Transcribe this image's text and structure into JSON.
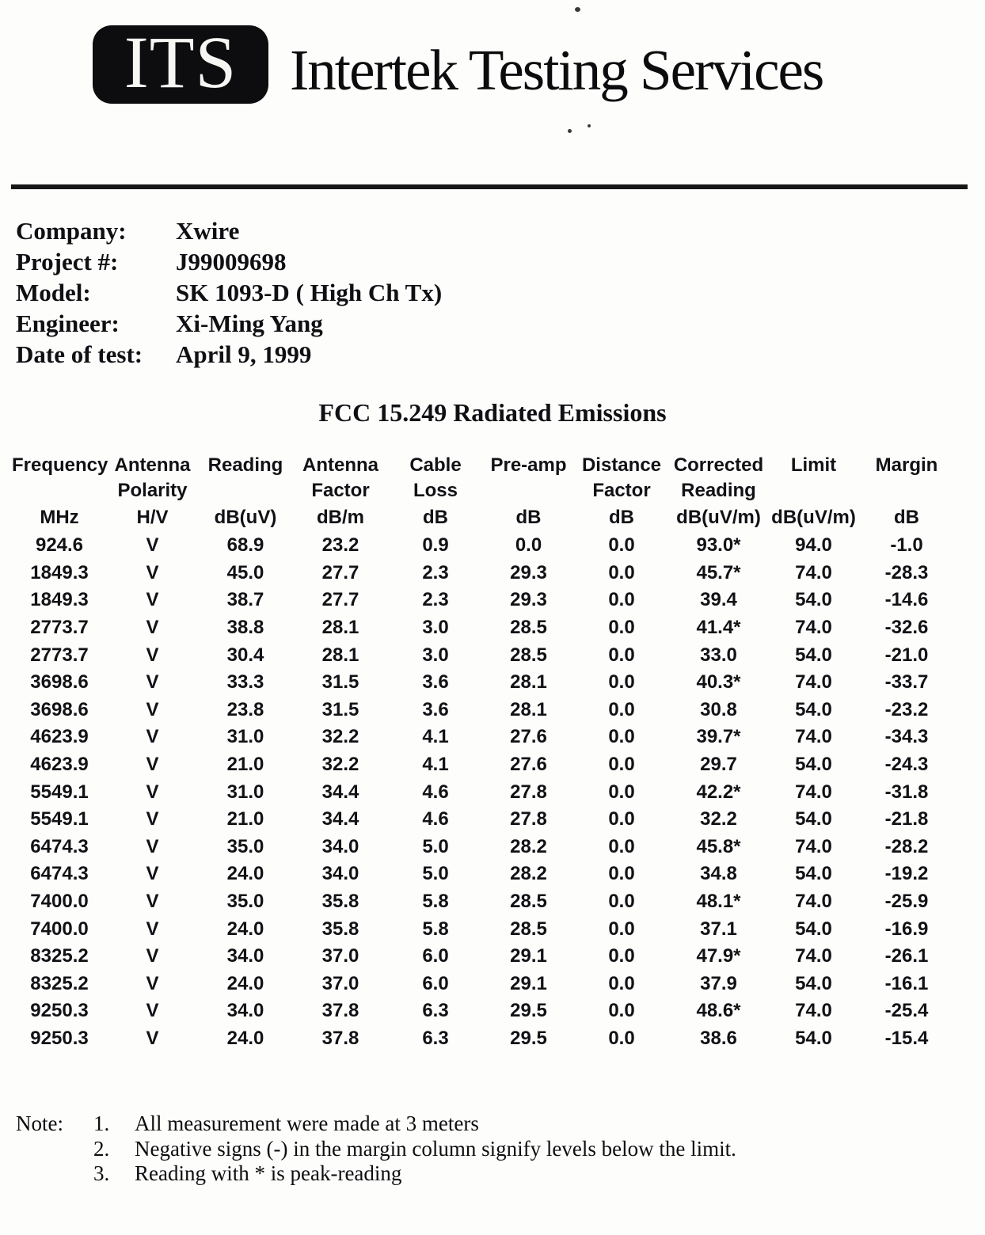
{
  "header": {
    "logo_text": "ITS",
    "company_name": "Intertek Testing Services"
  },
  "info": {
    "rows": [
      {
        "label": "Company:",
        "value": "Xwire"
      },
      {
        "label": "Project #:",
        "value": "J99009698"
      },
      {
        "label": "Model:",
        "value": "SK 1093-D ( High Ch Tx)"
      },
      {
        "label": "Engineer:",
        "value": "Xi-Ming Yang"
      },
      {
        "label": "Date of test:",
        "value": "April 9, 1999"
      }
    ]
  },
  "report": {
    "title": "FCC 15.249 Radiated Emissions"
  },
  "table": {
    "header_line1": [
      "Frequency",
      "Antenna",
      "Reading",
      "Antenna",
      "Cable",
      "Pre-amp",
      "Distance",
      "Corrected",
      "Limit",
      "Margin"
    ],
    "header_line2": [
      "",
      "Polarity",
      "",
      "Factor",
      "Loss",
      "",
      "Factor",
      "Reading",
      "",
      ""
    ],
    "header_units": [
      "MHz",
      "H/V",
      "dB(uV)",
      "dB/m",
      "dB",
      "dB",
      "dB",
      "dB(uV/m)",
      "dB(uV/m)",
      "dB"
    ],
    "rows": [
      [
        "924.6",
        "V",
        "68.9",
        "23.2",
        "0.9",
        "0.0",
        "0.0",
        "93.0*",
        "94.0",
        "-1.0"
      ],
      [
        "1849.3",
        "V",
        "45.0",
        "27.7",
        "2.3",
        "29.3",
        "0.0",
        "45.7*",
        "74.0",
        "-28.3"
      ],
      [
        "1849.3",
        "V",
        "38.7",
        "27.7",
        "2.3",
        "29.3",
        "0.0",
        "39.4",
        "54.0",
        "-14.6"
      ],
      [
        "2773.7",
        "V",
        "38.8",
        "28.1",
        "3.0",
        "28.5",
        "0.0",
        "41.4*",
        "74.0",
        "-32.6"
      ],
      [
        "2773.7",
        "V",
        "30.4",
        "28.1",
        "3.0",
        "28.5",
        "0.0",
        "33.0",
        "54.0",
        "-21.0"
      ],
      [
        "3698.6",
        "V",
        "33.3",
        "31.5",
        "3.6",
        "28.1",
        "0.0",
        "40.3*",
        "74.0",
        "-33.7"
      ],
      [
        "3698.6",
        "V",
        "23.8",
        "31.5",
        "3.6",
        "28.1",
        "0.0",
        "30.8",
        "54.0",
        "-23.2"
      ],
      [
        "4623.9",
        "V",
        "31.0",
        "32.2",
        "4.1",
        "27.6",
        "0.0",
        "39.7*",
        "74.0",
        "-34.3"
      ],
      [
        "4623.9",
        "V",
        "21.0",
        "32.2",
        "4.1",
        "27.6",
        "0.0",
        "29.7",
        "54.0",
        "-24.3"
      ],
      [
        "5549.1",
        "V",
        "31.0",
        "34.4",
        "4.6",
        "27.8",
        "0.0",
        "42.2*",
        "74.0",
        "-31.8"
      ],
      [
        "5549.1",
        "V",
        "21.0",
        "34.4",
        "4.6",
        "27.8",
        "0.0",
        "32.2",
        "54.0",
        "-21.8"
      ],
      [
        "6474.3",
        "V",
        "35.0",
        "34.0",
        "5.0",
        "28.2",
        "0.0",
        "45.8*",
        "74.0",
        "-28.2"
      ],
      [
        "6474.3",
        "V",
        "24.0",
        "34.0",
        "5.0",
        "28.2",
        "0.0",
        "34.8",
        "54.0",
        "-19.2"
      ],
      [
        "7400.0",
        "V",
        "35.0",
        "35.8",
        "5.8",
        "28.5",
        "0.0",
        "48.1*",
        "74.0",
        "-25.9"
      ],
      [
        "7400.0",
        "V",
        "24.0",
        "35.8",
        "5.8",
        "28.5",
        "0.0",
        "37.1",
        "54.0",
        "-16.9"
      ],
      [
        "8325.2",
        "V",
        "34.0",
        "37.0",
        "6.0",
        "29.1",
        "0.0",
        "47.9*",
        "74.0",
        "-26.1"
      ],
      [
        "8325.2",
        "V",
        "24.0",
        "37.0",
        "6.0",
        "29.1",
        "0.0",
        "37.9",
        "54.0",
        "-16.1"
      ],
      [
        "9250.3",
        "V",
        "34.0",
        "37.8",
        "6.3",
        "29.5",
        "0.0",
        "48.6*",
        "74.0",
        "-25.4"
      ],
      [
        "9250.3",
        "V",
        "24.0",
        "37.8",
        "6.3",
        "29.5",
        "0.0",
        "38.6",
        "54.0",
        "-15.4"
      ]
    ]
  },
  "notes": {
    "label": "Note:",
    "items": [
      {
        "num": "1.",
        "text": "All measurement were made at 3 meters"
      },
      {
        "num": "2.",
        "text": "Negative signs (-) in the margin column signify levels below the limit."
      },
      {
        "num": "3.",
        "text": "Reading with * is peak-reading"
      }
    ]
  }
}
